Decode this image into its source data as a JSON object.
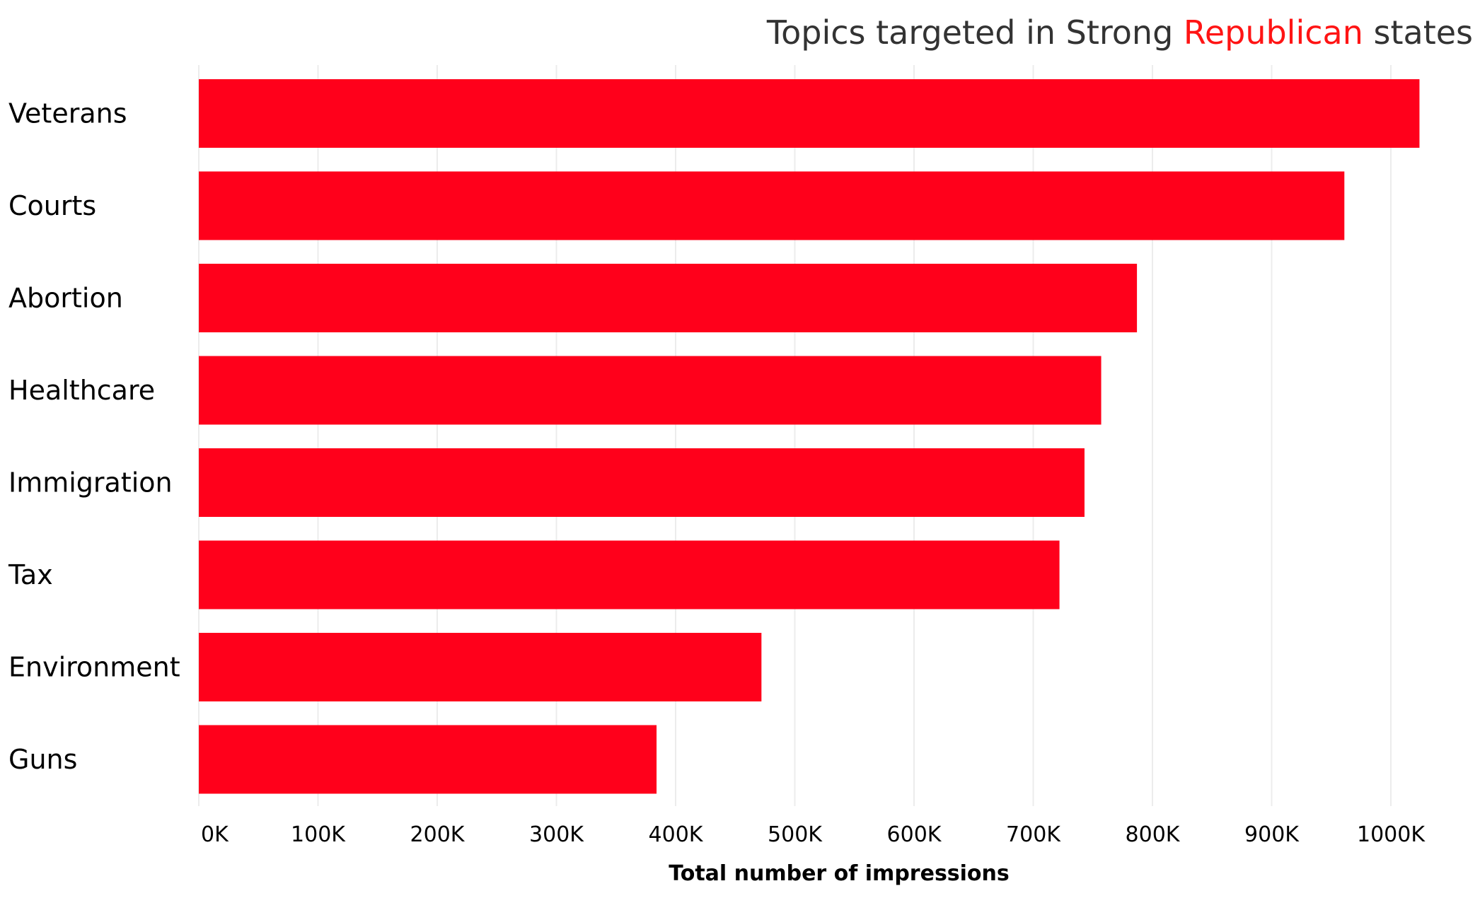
{
  "chart_data": {
    "type": "bar",
    "orientation": "horizontal",
    "title_parts": [
      "Topics targeted in Strong ",
      "Republican",
      " states"
    ],
    "categories": [
      "Veterans",
      "Courts",
      "Abortion",
      "Healthcare",
      "Immigration",
      "Tax",
      "Environment",
      "Guns"
    ],
    "values": [
      1024000,
      961000,
      787000,
      757000,
      743000,
      722000,
      472000,
      384000
    ],
    "xlabel": "Total number of impressions",
    "ylabel": "",
    "xlim": [
      0,
      1050000
    ],
    "x_ticks": [
      0,
      100000,
      200000,
      300000,
      400000,
      500000,
      600000,
      700000,
      800000,
      900000,
      1000000
    ],
    "x_tick_labels": [
      "0K",
      "100K",
      "200K",
      "300K",
      "400K",
      "500K",
      "600K",
      "700K",
      "800K",
      "900K",
      "1000K"
    ],
    "grid": "vertical",
    "legend": "none"
  },
  "colors": {
    "bar": "#ff001b",
    "title_highlight": "#ff1414",
    "title_text": "#333333",
    "gridline": "#ececec"
  }
}
